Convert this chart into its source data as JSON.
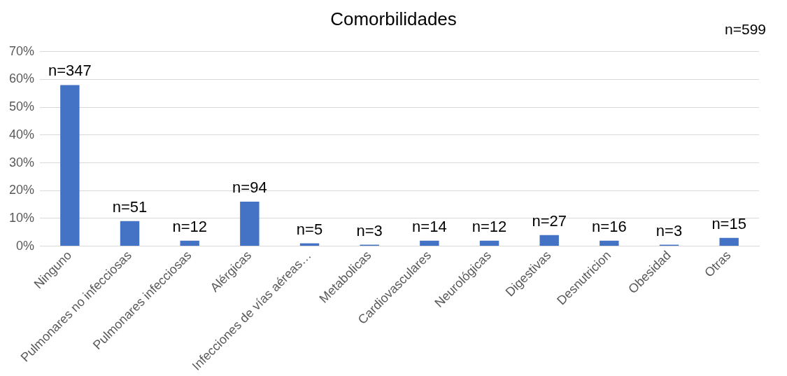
{
  "chart_data": {
    "type": "bar",
    "title": "Comorbilidades",
    "categories": [
      "Ninguno",
      "Pulmonares no infecciosas",
      "Pulmonares infecciosas",
      "Alérgicas",
      "Infecciones de vías aéreas…",
      "Metabolicas",
      "Cardiovasculares",
      "Neurológicas",
      "Digestivas",
      "Desnutricion",
      "Obesidad",
      "Otras"
    ],
    "values": [
      58,
      9,
      2,
      16,
      1,
      0.5,
      2,
      2,
      4,
      2,
      0.5,
      3
    ],
    "color": "#4472c4",
    "ylim": [
      0,
      70
    ],
    "yticks": [
      {
        "value": 0,
        "label": "0%"
      },
      {
        "value": 10,
        "label": "10%"
      },
      {
        "value": 20,
        "label": "20%"
      },
      {
        "value": 30,
        "label": "30%"
      },
      {
        "value": 40,
        "label": "40%"
      },
      {
        "value": 50,
        "label": "50%"
      },
      {
        "value": 60,
        "label": "60%"
      },
      {
        "value": 70,
        "label": "70%"
      }
    ],
    "grid": "y",
    "legend": false,
    "annotations": [
      "n=599",
      {
        "text": "n=347",
        "x": "Ninguno",
        "y": 58
      },
      {
        "text": "n=51",
        "x": "Pulmonares no infecciosas",
        "y": 9
      },
      {
        "text": "n=12",
        "x": "Pulmonares infecciosas",
        "y": 2
      },
      {
        "text": "n=94",
        "x": "Alérgicas",
        "y": 16
      },
      {
        "text": "n=5",
        "x": "Infecciones de vías aéreas…",
        "y": 1
      },
      {
        "text": "n=3",
        "x": "Metabolicas",
        "y": 0.5
      },
      {
        "text": "n=14",
        "x": "Cardiovasculares",
        "y": 2
      },
      {
        "text": "n=12",
        "x": "Neurológicas",
        "y": 2
      },
      {
        "text": "n=27",
        "x": "Digestivas",
        "y": 4
      },
      {
        "text": "n=16",
        "x": "Desnutricion",
        "y": 2
      },
      {
        "text": "n=3",
        "x": "Obesidad",
        "y": 0.5
      },
      {
        "text": "n=15",
        "x": "Otras",
        "y": 3
      }
    ]
  }
}
